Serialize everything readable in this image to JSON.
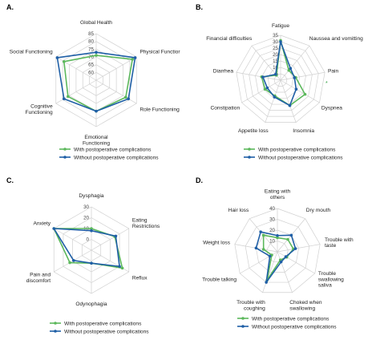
{
  "colors": {
    "with": "#5cb85c",
    "without": "#1f5fa6",
    "grid": "#d0d0d0"
  },
  "chart_data": [
    {
      "type": "radar",
      "panel": "A.",
      "categories": [
        "Global Health",
        "Physical Functior",
        "Role Functioning",
        "Emotional Functioning",
        "Cognitive Functioning",
        "Social Functioning"
      ],
      "label_lines": [
        [
          "Global Health"
        ],
        [
          "Physical Functior"
        ],
        [
          "Role Functioning"
        ],
        [
          "Emotional",
          "Functioning"
        ],
        [
          "Cognitive",
          "Functioning"
        ],
        [
          "Social Functioning"
        ]
      ],
      "rmin": 55,
      "rmax": 85,
      "step": 5,
      "ticks": [
        "85",
        "80",
        "75",
        "70",
        "65",
        "60"
      ],
      "series": [
        {
          "name": "With postoperative complications",
          "values": [
            71,
            82,
            77,
            75,
            76,
            79
          ]
        },
        {
          "name": "Without postoperative complications",
          "values": [
            73,
            84,
            79,
            75,
            79,
            84
          ]
        }
      ]
    },
    {
      "type": "radar",
      "panel": "B.",
      "categories": [
        "Fatigue",
        "Naussea and vomitting",
        "Pain",
        "Dyspnea",
        "Insomnia",
        "Appetite loss",
        "Constipation",
        "Diarrhea",
        "Financial difficulties"
      ],
      "label_lines": [
        [
          "Fatigue"
        ],
        [
          "Naussea and vomitting"
        ],
        [
          "Pain"
        ],
        [
          "Dyspnea"
        ],
        [
          "Insomnia"
        ],
        [
          "Appetite loss"
        ],
        [
          "Constipation"
        ],
        [
          "Diarrhea"
        ],
        [
          "Financial difficulties"
        ]
      ],
      "rmin": 0,
      "rmax": 35,
      "step": 5,
      "ticks": [
        "35",
        "30",
        "25",
        "20",
        "15",
        "10",
        "5"
      ],
      "series": [
        {
          "name": "With postoperative complications",
          "values": [
            31,
            10,
            12,
            22,
            21,
            13,
            14,
            15,
            5
          ]
        },
        {
          "name": "Without postoperative complications",
          "values": [
            30,
            12,
            11,
            14,
            21,
            14,
            12,
            14,
            6
          ]
        }
      ],
      "note": "*"
    },
    {
      "type": "radar",
      "panel": "C.",
      "categories": [
        "Dysphagia",
        "Eating Restrictions",
        "Reflux",
        "Odynophagia",
        "Pain and discomfort",
        "Anxiety"
      ],
      "label_lines": [
        [
          "Dysphagia"
        ],
        [
          "Eating",
          "Restrictions"
        ],
        [
          "Reflux"
        ],
        [
          "Odynophagia"
        ],
        [
          "Pain and",
          "discomfort"
        ],
        [
          "Anxiety"
        ]
      ],
      "rmin": -10,
      "rmax": 30,
      "step": 10,
      "ticks": [
        "30",
        "20",
        "10",
        "0"
      ],
      "series": [
        {
          "name": "With postoperative complications",
          "values": [
            10,
            15,
            23,
            2,
            13,
            30
          ]
        },
        {
          "name": "Without postoperative complications",
          "values": [
            8,
            16,
            20,
            2,
            9,
            30
          ]
        }
      ]
    },
    {
      "type": "radar",
      "panel": "D.",
      "categories": [
        "Eating with others",
        "Dry mouth",
        "Trouble with taste",
        "Trouble swallowing saliva",
        "Choked when swallowing",
        "Trouble with coughing",
        "Trouble talking",
        "Weight loss",
        "Hair loss"
      ],
      "label_lines": [
        [
          "Eating with",
          "others"
        ],
        [
          "Dry mouth"
        ],
        [
          "Trouble with",
          "taste"
        ],
        [
          "Trouble",
          "swallowing",
          "saliva"
        ],
        [
          "Choked when",
          "swallowing"
        ],
        [
          "Trouble with",
          "coughing"
        ],
        [
          "Trouble talking"
        ],
        [
          "Weight loss"
        ],
        [
          "Hair loss"
        ]
      ],
      "rmin": 0,
      "rmax": 40,
      "step": 10,
      "ticks": [
        "40",
        "30",
        "20",
        "10"
      ],
      "series": [
        {
          "name": "With postoperative complications",
          "values": [
            13,
            15,
            15,
            10,
            8,
            28,
            6,
            13,
            20
          ]
        },
        {
          "name": "Without postoperative complications",
          "values": [
            15,
            20,
            17,
            9,
            10,
            30,
            8,
            20,
            24
          ]
        }
      ]
    }
  ]
}
